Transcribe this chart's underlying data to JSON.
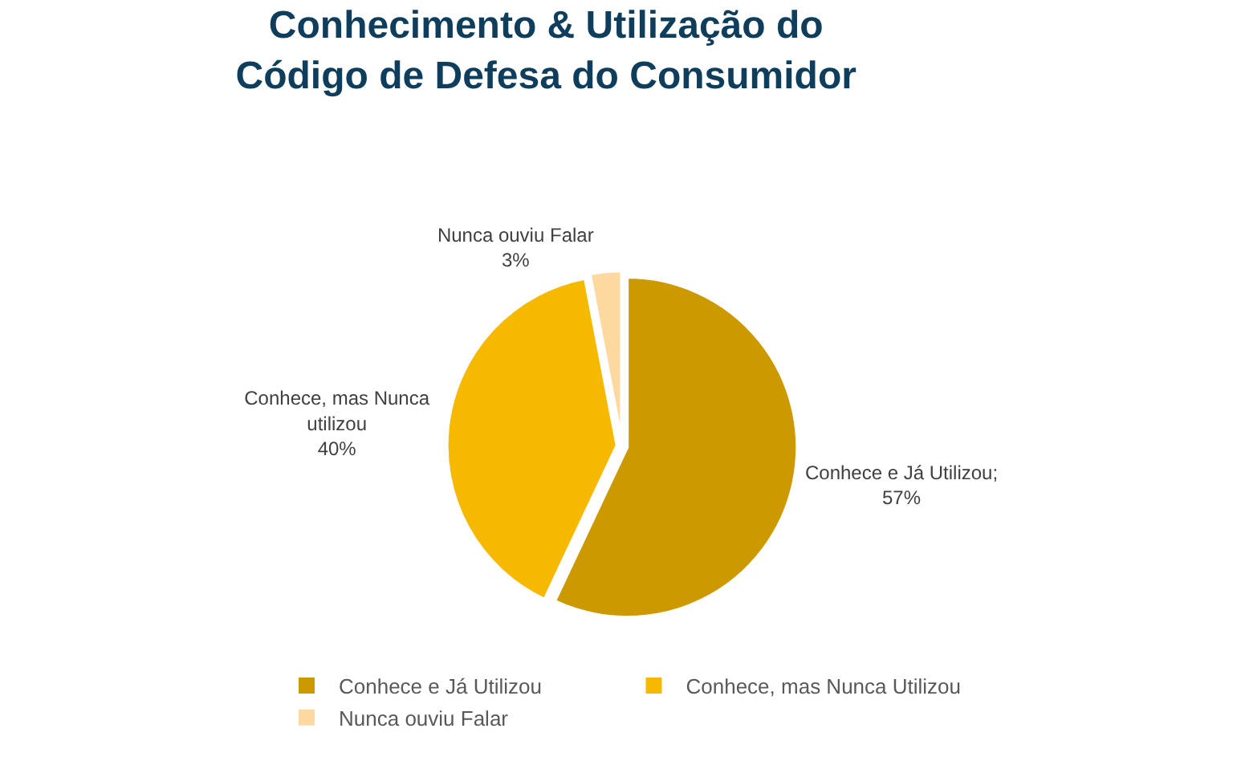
{
  "chart_data": {
    "type": "pie",
    "title": "Conhecimento & Utilização do\nCódigo de Defesa do Consumidor",
    "categories": [
      "Conhece e Já Utilizou",
      "Conhece, mas Nunca Utilizou",
      "Nunca ouviu Falar"
    ],
    "values": [
      57,
      40,
      3
    ],
    "colors": [
      "#cc9900",
      "#f7b900",
      "#fdd9a0"
    ],
    "value_labels": [
      "Conhece e Já Utilizou;\n57%",
      "Conhece, mas Nunca\nutilizou\n40%",
      "Nunca ouviu Falar\n3%"
    ],
    "legend": "bottom"
  }
}
